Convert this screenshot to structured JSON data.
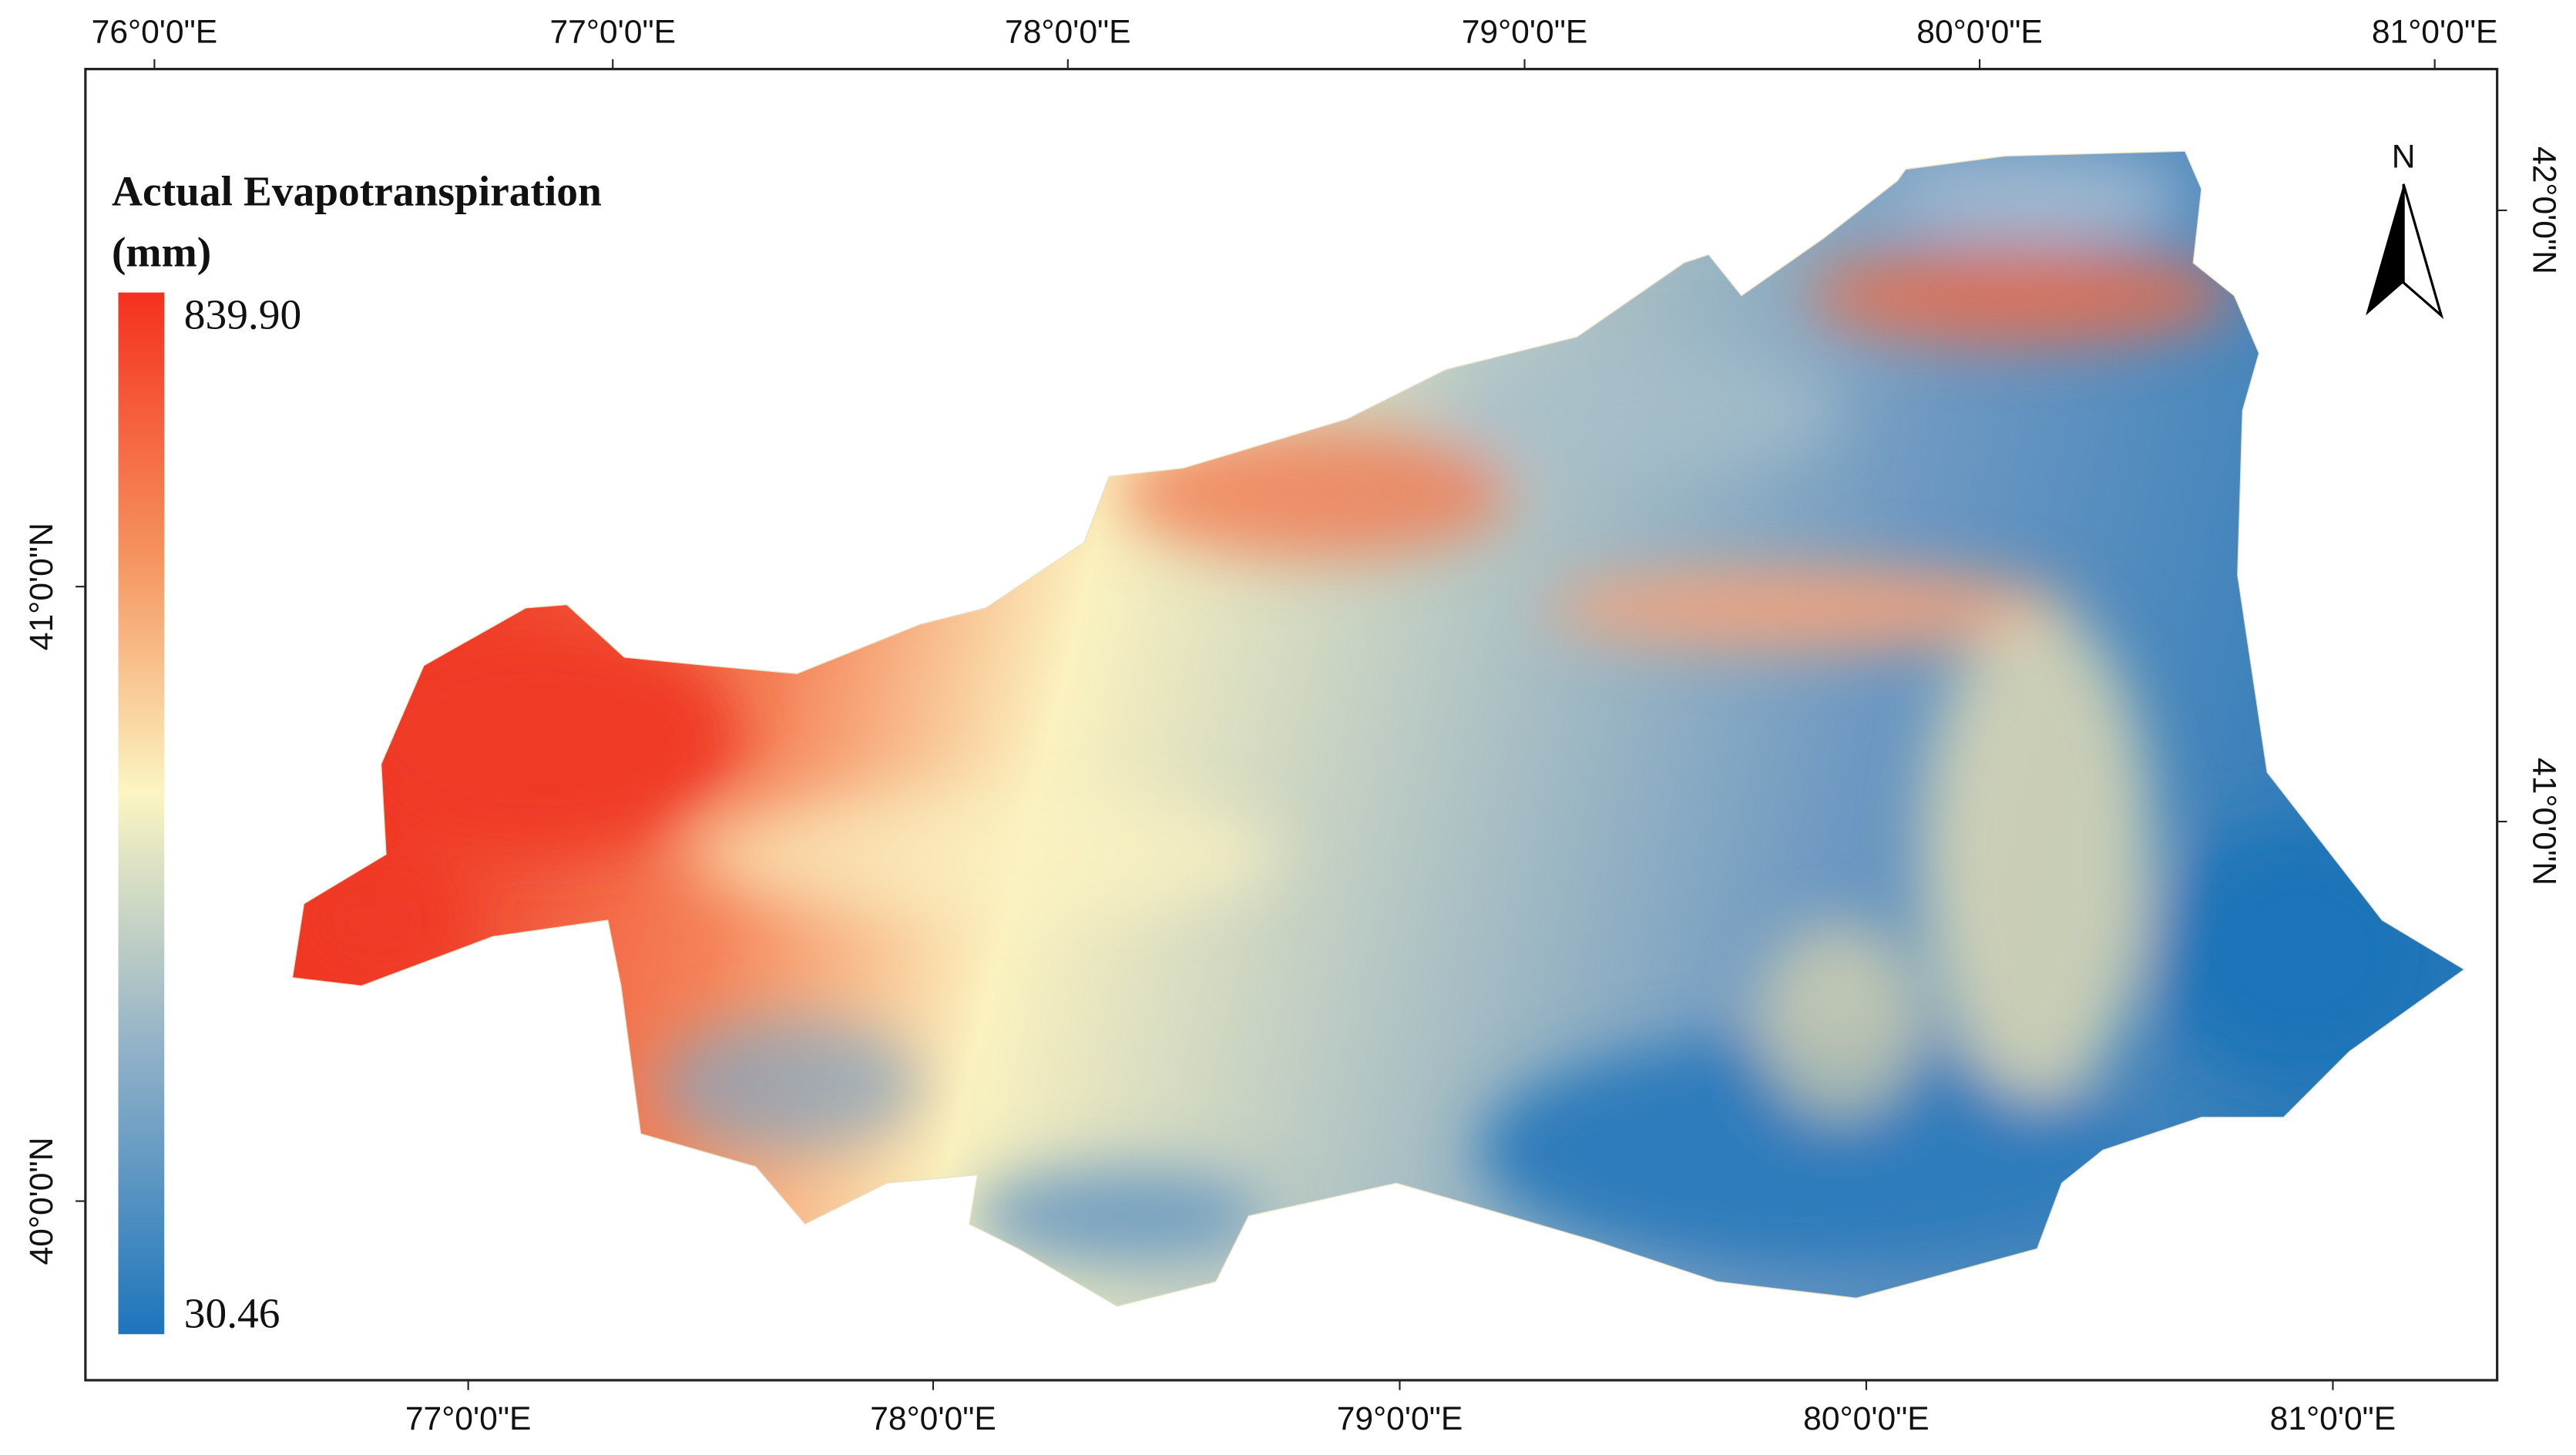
{
  "map": {
    "legend": {
      "title_line1": "Actual Evapotranspiration",
      "title_line2": "(mm)",
      "max": "839.90",
      "min": "30.46"
    },
    "north_label": "N",
    "top_axis": [
      "76°0'0\"E",
      "77°0'0\"E",
      "78°0'0\"E",
      "79°0'0\"E",
      "80°0'0\"E",
      "81°0'0\"E"
    ],
    "bottom_axis": [
      "77°0'0\"E",
      "78°0'0\"E",
      "79°0'0\"E",
      "80°0'0\"E",
      "81°0'0\"E"
    ],
    "left_axis": [
      "41°0'0\"N",
      "40°0'0\"N"
    ],
    "right_axis": [
      "42°0'0\"N",
      "41°0'0\"N"
    ]
  }
}
